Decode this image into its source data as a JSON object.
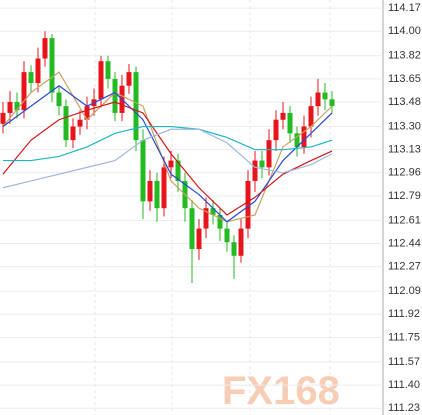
{
  "chart_data": {
    "type": "candlestick",
    "ylim": [
      111.18,
      114.23
    ],
    "yticks": [
      114.17,
      {
        "value": 114,
        "label": "114.00"
      },
      113.82,
      113.65,
      113.48,
      {
        "value": 113.3,
        "label": "113.30"
      },
      113.13,
      112.96,
      112.79,
      112.61,
      112.44,
      112.27,
      112.09,
      111.92,
      111.75,
      111.57,
      {
        "value": 111.4,
        "label": "111.40"
      },
      111.23
    ],
    "grid": true,
    "up_color": "#e8141c",
    "down_color": "#22bb22",
    "open": [
      113.32,
      113.4,
      113.48,
      113.42,
      113.7,
      113.62,
      113.8,
      113.95,
      113.55,
      113.45,
      113.2,
      113.3,
      113.35,
      113.45,
      113.5,
      113.78,
      113.65,
      113.4,
      113.6,
      113.7,
      113.2,
      112.75,
      112.9,
      112.7,
      113.0,
      113.05,
      112.9,
      112.7,
      112.4,
      112.55,
      112.7,
      112.65,
      112.55,
      112.45,
      112.35,
      112.55,
      112.9,
      113.05,
      113.0,
      113.2,
      113.35,
      113.4,
      113.25,
      113.15,
      113.3,
      113.45,
      113.55,
      113.5
    ],
    "high": [
      113.48,
      113.56,
      113.55,
      113.78,
      113.75,
      113.88,
      114.0,
      113.98,
      113.6,
      113.5,
      113.36,
      113.42,
      113.52,
      113.58,
      113.82,
      113.82,
      113.7,
      113.68,
      113.76,
      113.74,
      113.28,
      112.98,
      112.96,
      113.08,
      113.12,
      113.1,
      112.96,
      112.76,
      112.62,
      112.78,
      112.76,
      112.7,
      112.6,
      112.5,
      112.62,
      112.98,
      113.12,
      113.12,
      113.28,
      113.42,
      113.48,
      113.45,
      113.3,
      113.38,
      113.52,
      113.65,
      113.62,
      113.56
    ],
    "low": [
      113.25,
      113.32,
      113.36,
      113.36,
      113.55,
      113.55,
      113.74,
      113.48,
      113.38,
      113.15,
      113.14,
      113.24,
      113.28,
      113.38,
      113.44,
      113.58,
      113.34,
      113.34,
      113.54,
      113.12,
      112.62,
      112.68,
      112.6,
      112.64,
      112.92,
      112.82,
      112.6,
      112.15,
      112.32,
      112.48,
      112.58,
      112.46,
      112.38,
      112.18,
      112.3,
      112.48,
      112.82,
      112.92,
      112.94,
      113.12,
      113.28,
      113.18,
      113.08,
      113.1,
      113.22,
      113.38,
      113.42,
      113.4
    ],
    "close": [
      113.4,
      113.48,
      113.42,
      113.7,
      113.62,
      113.8,
      113.95,
      113.55,
      113.45,
      113.2,
      113.3,
      113.35,
      113.45,
      113.5,
      113.78,
      113.65,
      113.4,
      113.6,
      113.7,
      113.2,
      112.75,
      112.9,
      112.7,
      113.0,
      113.05,
      112.9,
      112.7,
      112.4,
      112.55,
      112.7,
      112.65,
      112.55,
      112.45,
      112.35,
      112.55,
      112.9,
      113.05,
      113.0,
      113.2,
      113.35,
      113.4,
      113.25,
      113.15,
      113.3,
      113.45,
      113.55,
      113.5,
      113.45
    ],
    "series": [
      {
        "color": "#c9a063",
        "x": [
          0,
          4,
          8,
          12,
          16,
          20,
          24,
          28,
          32,
          36,
          40,
          44,
          47
        ],
        "values": [
          113.3,
          113.55,
          113.7,
          113.35,
          113.55,
          113.45,
          112.9,
          112.7,
          112.6,
          112.65,
          113.15,
          113.3,
          113.45
        ]
      },
      {
        "color": "#2a4bd0",
        "x": [
          0,
          4,
          8,
          12,
          16,
          20,
          24,
          28,
          32,
          36,
          40,
          44,
          47
        ],
        "values": [
          113.3,
          113.45,
          113.6,
          113.45,
          113.55,
          113.35,
          112.95,
          112.8,
          112.6,
          112.75,
          113.05,
          113.25,
          113.4
        ]
      },
      {
        "color": "#d01818",
        "x": [
          0,
          4,
          8,
          12,
          16,
          20,
          24,
          28,
          32,
          36,
          40,
          44,
          47
        ],
        "values": [
          112.95,
          113.2,
          113.35,
          113.42,
          113.48,
          113.4,
          113.1,
          112.85,
          112.65,
          112.78,
          112.95,
          113.05,
          113.12
        ]
      },
      {
        "color": "#1fb5c5",
        "x": [
          0,
          4,
          8,
          12,
          16,
          20,
          24,
          28,
          32,
          36,
          40,
          44,
          47
        ],
        "values": [
          113.05,
          113.05,
          113.08,
          113.15,
          113.25,
          113.3,
          113.3,
          113.28,
          113.22,
          113.13,
          113.13,
          113.15,
          113.2
        ]
      },
      {
        "color": "#9db8e0",
        "x": [
          0,
          4,
          8,
          12,
          16,
          20,
          24,
          28,
          32,
          36,
          40,
          44,
          47
        ],
        "values": [
          112.85,
          112.9,
          112.95,
          113.0,
          113.05,
          113.2,
          113.28,
          113.28,
          113.18,
          113.0,
          112.96,
          113.02,
          113.1
        ]
      }
    ],
    "watermark": "FX168"
  }
}
